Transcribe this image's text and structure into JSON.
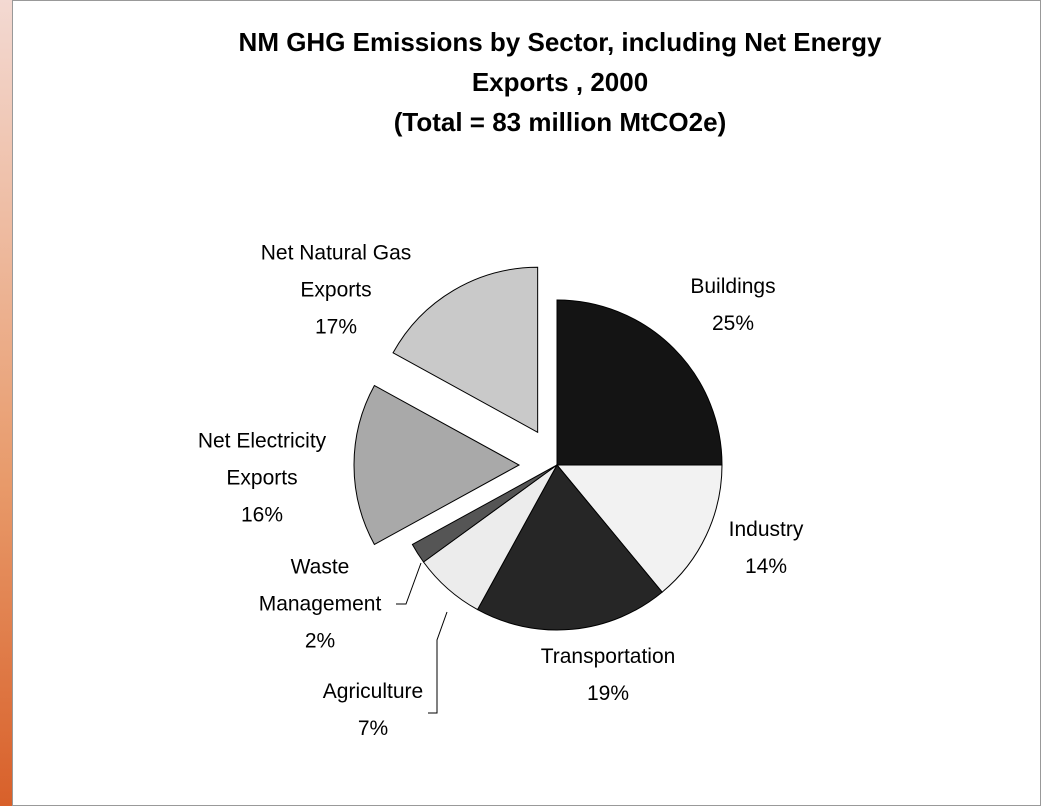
{
  "chart_data": {
    "type": "pie",
    "title": "NM GHG Emissions by Sector, including Net Energy Exports , 2000",
    "subtitle": "(Total = 83 million MtCO2e)",
    "categories": [
      "Buildings",
      "Industry",
      "Transportation",
      "Agriculture",
      "Waste Management",
      "Net Electricity Exports",
      "Net Natural Gas Exports"
    ],
    "values": [
      25,
      14,
      19,
      7,
      2,
      16,
      17
    ],
    "value_labels": [
      "25%",
      "14%",
      "19%",
      "7%",
      "2%",
      "16%",
      "17%"
    ],
    "colors": [
      "#141414",
      "#f2f2f2",
      "#262626",
      "#ececec",
      "#555555",
      "#a9a9a9",
      "#c9c9c9"
    ],
    "explode": [
      false,
      false,
      false,
      false,
      false,
      true,
      true
    ]
  }
}
